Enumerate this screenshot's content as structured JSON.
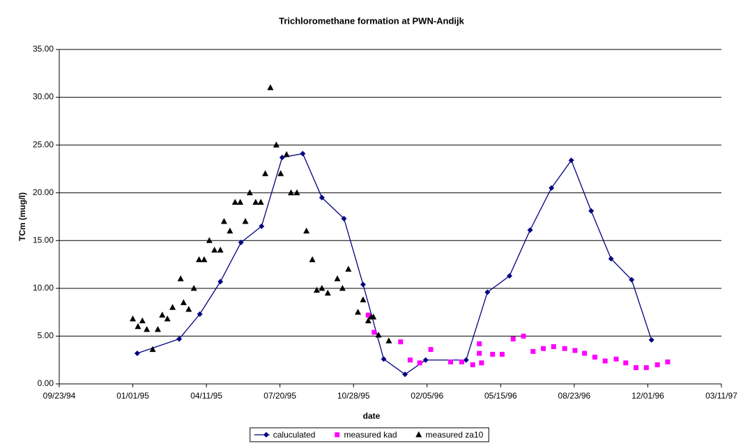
{
  "chart_data": {
    "type": "line",
    "title": "Trichloromethane formation at PWN-Andijk",
    "x_label": "date",
    "y_label": "TCm (mug/l)",
    "xlim": [
      "09/23/94",
      "03/11/97"
    ],
    "xticks": [
      "09/23/94",
      "01/01/95",
      "04/11/95",
      "07/20/95",
      "10/28/95",
      "02/05/96",
      "05/15/96",
      "08/23/96",
      "12/01/96",
      "03/11/97"
    ],
    "ylim": [
      0,
      35
    ],
    "yticks": [
      {
        "value": 0,
        "label": "0.00"
      },
      {
        "value": 5,
        "label": "5.00"
      },
      {
        "value": 10,
        "label": "10.00"
      },
      {
        "value": 15,
        "label": "15.00"
      },
      {
        "value": 20,
        "label": "20.00"
      },
      {
        "value": 25,
        "label": "25.00"
      },
      {
        "value": 30,
        "label": "30.00"
      },
      {
        "value": 35,
        "label": "35.00"
      }
    ],
    "grid": true,
    "legend": "bottom",
    "series": [
      {
        "name": "caluculated",
        "color": "#000080",
        "marker": "diamond",
        "line": true,
        "x": [
          "01/07/95",
          "03/05/95",
          "04/02/95",
          "04/30/95",
          "05/28/95",
          "06/25/95",
          "07/23/95",
          "08/20/95",
          "09/15/95",
          "10/15/95",
          "11/10/95",
          "12/08/95",
          "01/06/96",
          "02/03/96",
          "03/29/96",
          "04/27/96",
          "05/27/96",
          "06/24/96",
          "07/23/96",
          "08/19/96",
          "09/15/96",
          "10/12/96",
          "11/09/96",
          "12/06/96"
        ],
        "values": [
          3.2,
          4.7,
          7.3,
          10.7,
          14.8,
          16.5,
          23.7,
          24.1,
          19.5,
          17.3,
          10.4,
          2.6,
          1.0,
          2.5,
          2.5,
          9.6,
          11.3,
          16.1,
          20.5,
          23.4,
          18.1,
          13.1,
          10.9,
          4.6
        ]
      },
      {
        "name": "measured kad",
        "color": "#ff00ff",
        "marker": "square",
        "line": false,
        "x": [
          "11/17/95",
          "11/25/95",
          "12/31/95",
          "01/13/96",
          "01/26/96",
          "02/10/96",
          "03/08/96",
          "03/23/96",
          "04/07/96",
          "04/16/96",
          "04/16/96",
          "04/19/96",
          "05/04/96",
          "05/17/96",
          "06/01/96",
          "06/15/96",
          "06/28/96",
          "07/12/96",
          "07/26/96",
          "08/10/96",
          "08/24/96",
          "09/06/96",
          "09/20/96",
          "10/04/96",
          "10/19/96",
          "11/01/96",
          "11/15/96",
          "11/29/96",
          "12/14/96",
          "12/28/96"
        ],
        "values": [
          7.2,
          5.4,
          4.4,
          2.5,
          2.2,
          3.6,
          2.3,
          2.3,
          2.0,
          3.2,
          4.2,
          2.2,
          3.1,
          3.1,
          4.7,
          5.0,
          3.4,
          3.7,
          3.9,
          3.7,
          3.5,
          3.2,
          2.8,
          2.4,
          2.6,
          2.2,
          1.7,
          1.7,
          2.0,
          2.3
        ]
      },
      {
        "name": "measured za10",
        "color": "#000000",
        "marker": "triangle",
        "line": false,
        "x": [
          "01/01/95",
          "01/08/95",
          "01/14/95",
          "01/20/95",
          "01/28/95",
          "02/04/95",
          "02/10/95",
          "02/17/95",
          "02/24/95",
          "03/07/95",
          "03/11/95",
          "03/18/95",
          "03/25/95",
          "04/01/95",
          "04/08/95",
          "04/15/95",
          "04/22/95",
          "04/30/95",
          "05/05/95",
          "05/13/95",
          "05/20/95",
          "05/27/95",
          "06/03/95",
          "06/09/95",
          "06/17/95",
          "06/24/95",
          "06/30/95",
          "07/07/95",
          "07/15/95",
          "07/21/95",
          "07/29/95",
          "08/04/95",
          "08/12/95",
          "08/25/95",
          "09/02/95",
          "09/08/95",
          "09/15/95",
          "09/23/95",
          "10/06/95",
          "10/13/95",
          "10/21/95",
          "11/03/95",
          "11/10/95",
          "11/17/95",
          "11/21/95",
          "11/24/95",
          "12/01/95",
          "12/15/95"
        ],
        "values": [
          6.8,
          6.0,
          6.6,
          5.7,
          3.6,
          5.7,
          7.2,
          6.8,
          8.0,
          11.0,
          8.5,
          7.8,
          10.0,
          13.0,
          13.0,
          15.0,
          14.0,
          14.0,
          17.0,
          16.0,
          19.0,
          19.0,
          17.0,
          20.0,
          19.0,
          19.0,
          22.0,
          31.0,
          25.0,
          22.0,
          24.0,
          20.0,
          20.0,
          16.0,
          13.0,
          9.8,
          10.0,
          9.5,
          11.0,
          10.0,
          12.0,
          7.5,
          8.8,
          6.6,
          7.0,
          7.0,
          5.1,
          4.5
        ]
      }
    ]
  }
}
